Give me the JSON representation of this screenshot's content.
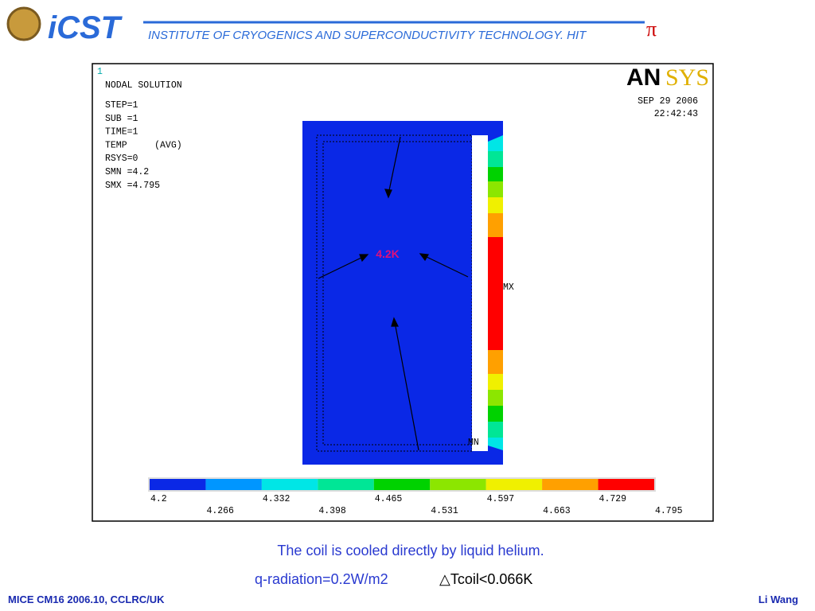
{
  "header": {
    "logo": "iCST",
    "title": "INSTITUTE OF CRYOGENICS AND SUPERCONDUCTIVITY TECHNOLOGY. HIT"
  },
  "plot": {
    "window_number": "1",
    "heading": "NODAL SOLUTION",
    "info": [
      "STEP=1",
      "SUB =1",
      "TIME=1",
      "TEMP     (AVG)",
      "RSYS=0",
      "SMN =4.2",
      "SMX =4.795"
    ],
    "brand": [
      "AN",
      "SYS"
    ],
    "date": "SEP 29 2006",
    "time": "22:42:43",
    "annotation": "4.2K",
    "max_marker": "MX",
    "min_marker": "MN",
    "legend": {
      "labels": [
        "4.2",
        "4.266",
        "4.332",
        "4.398",
        "4.465",
        "4.531",
        "4.597",
        "4.663",
        "4.729",
        "4.795"
      ],
      "colors": [
        "#0a28e6",
        "#0096ff",
        "#00e6e6",
        "#00e696",
        "#00d200",
        "#8ce600",
        "#f0f000",
        "#ffa000",
        "#ff0000"
      ]
    }
  },
  "caption": {
    "line1": "The coil is cooled directly by liquid helium.",
    "line2a": "q-radiation=0.2W/m2",
    "line2b": "△Tcoil<0.066K"
  },
  "footer": {
    "left": "MICE CM16 2006.10, CCLRC/UK",
    "right": "Li Wang"
  }
}
